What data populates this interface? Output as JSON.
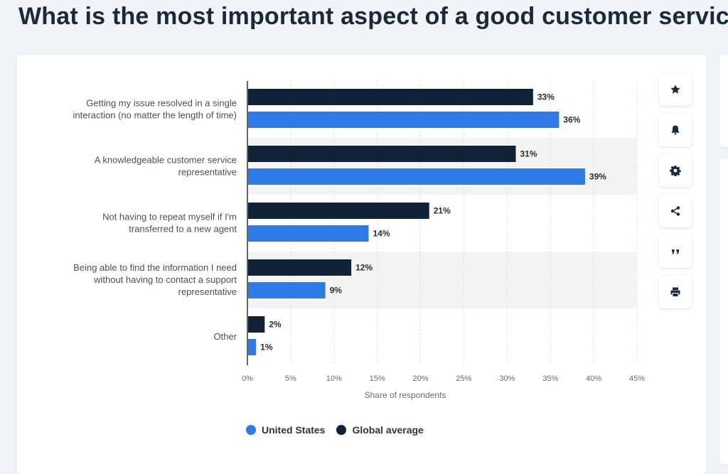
{
  "page": {
    "title": "What is the most important aspect of a good customer service"
  },
  "toolbar": {
    "icons": [
      "star-icon",
      "bell-icon",
      "gear-icon",
      "share-icon",
      "quote-icon",
      "print-icon"
    ]
  },
  "colors": {
    "united_states": "#2f7be6",
    "global_average": "#0f2238",
    "band": "#f4f4f4",
    "grid": "#d9d9d9",
    "axis": "#333333"
  },
  "chart_data": {
    "type": "bar",
    "orientation": "horizontal",
    "categories": [
      [
        "Getting my issue resolved in a single",
        "interaction (no matter the length of time)"
      ],
      [
        "A knowledgeable customer service",
        "representative"
      ],
      [
        "Not having to repeat myself if I'm",
        "transferred to a new agent"
      ],
      [
        "Being able to find the information I need",
        "without having to contact a support",
        "representative"
      ],
      [
        "Other"
      ]
    ],
    "series": [
      {
        "name": "Global average",
        "color": "#0f2238",
        "values": [
          33,
          31,
          21,
          12,
          2
        ]
      },
      {
        "name": "United States",
        "color": "#2f7be6",
        "values": [
          36,
          39,
          14,
          9,
          1
        ]
      }
    ],
    "value_suffix": "%",
    "xlim": [
      0,
      45
    ],
    "ticks": [
      0,
      5,
      10,
      15,
      20,
      25,
      30,
      35,
      40,
      45
    ],
    "tick_labels": [
      "0%",
      "5%",
      "10%",
      "15%",
      "20%",
      "25%",
      "30%",
      "35%",
      "40%",
      "45%"
    ],
    "xlabel": "Share of respondents",
    "legend": [
      "United States",
      "Global average"
    ],
    "legend_position": "bottom"
  }
}
